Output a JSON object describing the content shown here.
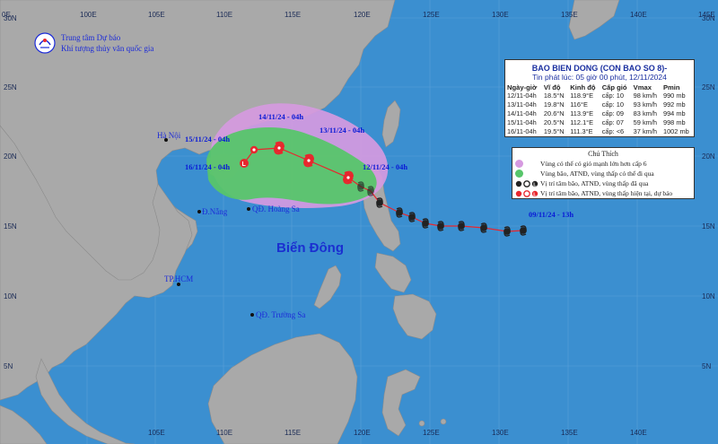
{
  "agency": {
    "line1": "Trung tâm Dự báo",
    "line2": "Khí tượng thủy văn quốc gia"
  },
  "axes": {
    "top_ticks": [
      "0E",
      "100E",
      "105E",
      "110E",
      "115E",
      "120E",
      "125E",
      "130E",
      "135E",
      "140E",
      "145E"
    ],
    "bottom_ticks": [
      "105E",
      "110E",
      "115E",
      "120E",
      "125E",
      "130E",
      "135E",
      "140E"
    ],
    "left_ticks": [
      "30N",
      "25N",
      "20N",
      "15N",
      "10N",
      "5N"
    ],
    "right_ticks": [
      "30N",
      "25N",
      "20N",
      "15N",
      "10N",
      "5N"
    ]
  },
  "places": {
    "hanoi": "Hà Nội",
    "danang": "Đ.Nẵng",
    "hcm": "TP.HCM",
    "hoangsa": "QĐ. Hoàng Sa",
    "truongsa": "QĐ. Trường Sa",
    "sea": "Biển Đông"
  },
  "track_labels": {
    "d0911": "09/11/24 - 13h",
    "d1211": "12/11/24 - 04h",
    "d1311": "13/11/24 - 04h",
    "d1411": "14/11/24 - 04h",
    "d1511": "15/11/24 - 04h",
    "d1611": "16/11/24 - 04h"
  },
  "bulletin": {
    "title": "BAO BIEN DONG (CON BAO SO 8)-",
    "issued": "Tin phát lúc: 05 giờ 00 phút, 12/11/2024",
    "headers": [
      "Ngày-giờ",
      "Vĩ độ",
      "Kinh độ",
      "Cấp gió",
      "Vmax",
      "Pmin"
    ],
    "rows": [
      [
        "12/11-04h",
        "18.5°N",
        "118.9°E",
        "cấp: 10",
        "98 km/h",
        "990 mb"
      ],
      [
        "13/11-04h",
        "19.8°N",
        "116°E",
        "cấp: 10",
        "93 km/h",
        "992 mb"
      ],
      [
        "14/11-04h",
        "20.6°N",
        "113.9°E",
        "cấp: 09",
        "83 km/h",
        "994 mb"
      ],
      [
        "15/11-04h",
        "20.5°N",
        "112.1°E",
        "cấp: 07",
        "59 km/h",
        "998 mb"
      ],
      [
        "16/11-04h",
        "19.5°N",
        "111.3°E",
        "cấp: <6",
        "37 km/h",
        "1002 mb"
      ]
    ]
  },
  "legend": {
    "title": "Chú Thích",
    "items": [
      "Vùng có thể có gió mạnh lớn hơn cấp 6",
      "Vùng bão, ATNĐ, vùng thấp có thể đi qua",
      "Vị trí tâm bão, ATNĐ, vùng thấp đã qua",
      "Vị trí tâm bão, ATNĐ, vùng thấp hiện tại, dự báo"
    ]
  },
  "colors": {
    "sea": "#3b8fd0",
    "land": "#a9a9a9",
    "purple_zone": "#d69ae0",
    "green_zone": "#57c56a",
    "forecast_icon": "#e8262d",
    "past_icon": "#222222",
    "track_line": "#e8262d"
  }
}
